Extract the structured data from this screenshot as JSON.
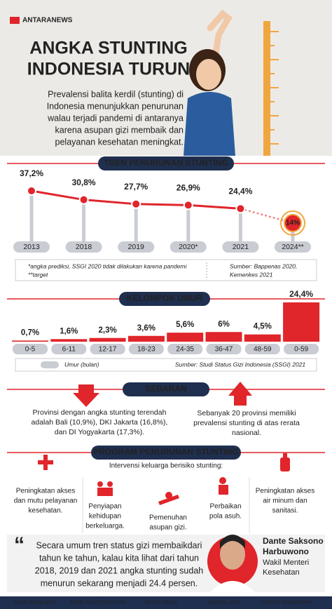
{
  "header": {
    "logo": "ANTARANEWS",
    "title_lines": [
      "ANGKA STUNTING",
      "INDONESIA TURUN"
    ],
    "intro_lines": [
      "Prevalensi balita kerdil (stunting) di",
      "Indonesia menunjukkan penurunan",
      "walau terjadi pandemi di antaranya",
      "karena asupan gizi membaik dan",
      "pelayanan kesehatan meningkat."
    ]
  },
  "trend": {
    "type": "line",
    "title": "TREN PENURUNAN STUNTING",
    "categories": [
      "2013",
      "2018",
      "2019",
      "2020*",
      "2021",
      "2024**"
    ],
    "values": [
      37.2,
      30.8,
      27.7,
      26.9,
      24.4,
      14
    ],
    "value_labels": [
      "37,2%",
      "30,8%",
      "27,7%",
      "26,9%",
      "24,4%",
      "14%"
    ],
    "notes": [
      "*angka prediksi, SSGI 2020 tidak dilakukan karena pandemi",
      "**target"
    ],
    "source_lines": [
      "Sumber: Bappenas 2020,",
      "Kemenkes 2021"
    ]
  },
  "age": {
    "type": "bar",
    "title": "KELOMPOK UMUR",
    "categories": [
      "0-5",
      "6-11",
      "12-17",
      "18-23",
      "24-35",
      "36-47",
      "48-59",
      "0-59"
    ],
    "values": [
      0.7,
      1.6,
      2.3,
      3.6,
      5.6,
      6,
      4.5,
      24.4
    ],
    "value_labels": [
      "0,7%",
      "1,6%",
      "2,3%",
      "3,6%",
      "5,6%",
      "6%",
      "4,5%",
      "24,4%"
    ],
    "legend": "Umur (bulan)",
    "source": "Sumber: Studi Status Gizi Indonesia (SSGI) 2021"
  },
  "spread": {
    "title": "SEBARAN",
    "left_lines": [
      "Provinsi dengan angka stunting terendah",
      "adalah Bali (10,9%), DKI Jakarta (16,8%),",
      "dan DI Yogyakarta (17,3%)."
    ],
    "right_lines": [
      "Sebanyak 20 provinsi memiliki",
      "prevalensi stunting di atas rerata",
      "nasional."
    ]
  },
  "program": {
    "title": "PROGRAM PENURUNAN STUNTING",
    "subtitle": "Intervensi keluarga berisiko stunting:",
    "items": [
      [
        "Peningkatan akses",
        "dan mutu pelayanan",
        "kesehatan."
      ],
      [
        "Penyiapan",
        "kehidupan",
        "berkeluarga."
      ],
      [
        "Pemenuhan",
        "asupan gizi."
      ],
      [
        "Perbaikan",
        "pola asuh."
      ],
      [
        "Peningkatan akses",
        "air minum dan",
        "sanitasi."
      ]
    ]
  },
  "quote": {
    "lines": [
      "Secara umum tren status gizi membaikdari",
      "tahun ke tahun, kalau kita lihat dari tahun",
      "2018, 2019 dan 2021 angka stunting sudah",
      "menurun sekarang menjadi 24.4 persen."
    ],
    "name_lines": [
      "Dante Saksono",
      "Harbuwono"
    ],
    "role_lines": [
      "Wakil Menteri",
      "Kesehatan"
    ]
  },
  "footer": [
    "DATA: KEMENKES",
    "FOTO: SHUTTERSTOCK",
    "RISET: DASRI",
    "GRAFIS: ULFA",
    "EDITOR: DYAH/HEPPY"
  ]
}
